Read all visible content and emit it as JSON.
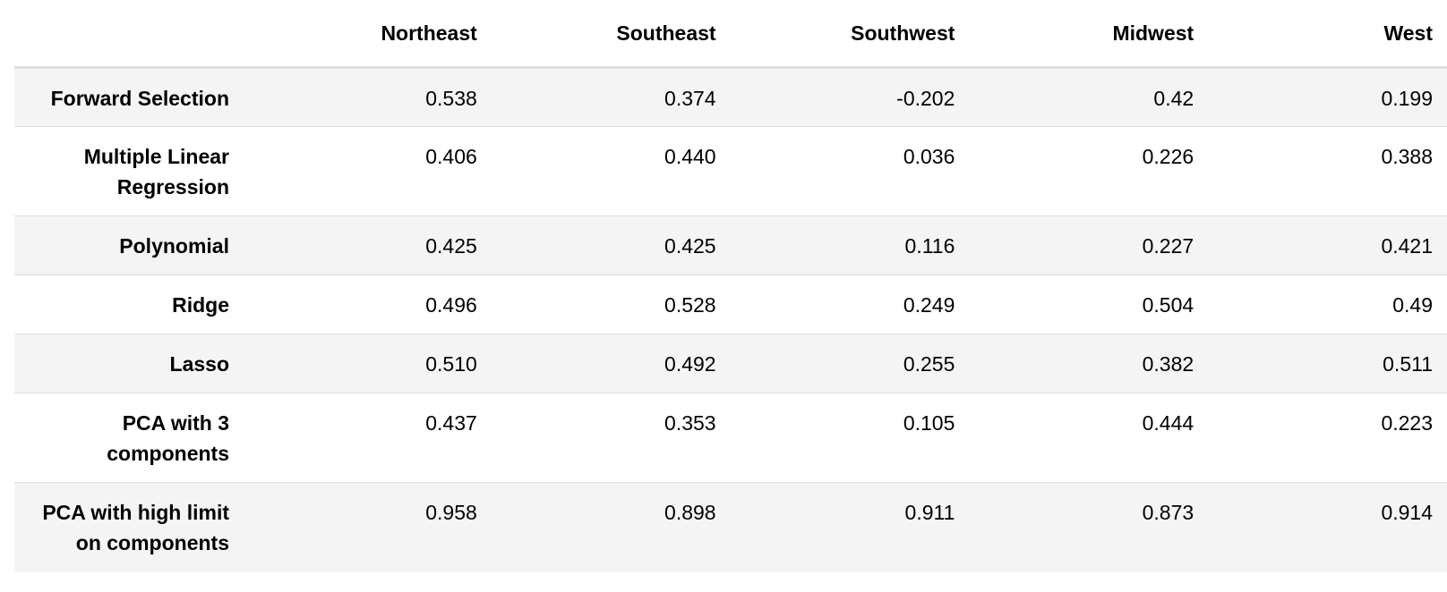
{
  "table": {
    "columns": [
      "",
      "Northeast",
      "Southeast",
      "Southwest",
      "Midwest",
      "West"
    ],
    "rows": [
      {
        "label": "Forward Selection",
        "values": [
          "0.538",
          "0.374",
          "-0.202",
          "0.42",
          "0.199"
        ]
      },
      {
        "label": "Multiple Linear Regression",
        "values": [
          "0.406",
          "0.440",
          "0.036",
          "0.226",
          "0.388"
        ]
      },
      {
        "label": "Polynomial",
        "values": [
          "0.425",
          "0.425",
          "0.116",
          "0.227",
          "0.421"
        ]
      },
      {
        "label": "Ridge",
        "values": [
          "0.496",
          "0.528",
          "0.249",
          "0.504",
          "0.49"
        ]
      },
      {
        "label": "Lasso",
        "values": [
          "0.510",
          "0.492",
          "0.255",
          "0.382",
          "0.511"
        ]
      },
      {
        "label": "PCA with 3 components",
        "values": [
          "0.437",
          "0.353",
          "0.105",
          "0.444",
          "0.223"
        ]
      },
      {
        "label": "PCA with high limit on components",
        "values": [
          "0.958",
          "0.898",
          "0.911",
          "0.873",
          "0.914"
        ]
      }
    ]
  }
}
